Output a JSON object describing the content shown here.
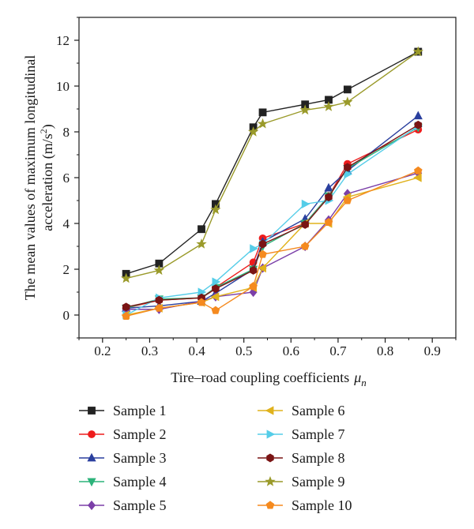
{
  "chart_data": {
    "type": "line",
    "xlabel": "Tire–road coupling coefficients",
    "xlabel_symbol": "μ",
    "xlabel_subscript": "n",
    "ylabel_line1": "The mean values of maximum longitudinal",
    "ylabel_line2": "acceleration (m/s",
    "ylabel_sup": "2",
    "ylabel_end": ")",
    "xlim": [
      0.15,
      0.95
    ],
    "ylim": [
      -1,
      13
    ],
    "xticks": [
      "0.2",
      "0.3",
      "0.4",
      "0.5",
      "0.6",
      "0.7",
      "0.8",
      "0.9"
    ],
    "yticks": [
      "0",
      "2",
      "4",
      "6",
      "8",
      "10",
      "12"
    ],
    "grid": false,
    "legend_position": "bottom",
    "x": [
      0.25,
      0.32,
      0.41,
      0.44,
      0.52,
      0.54,
      0.63,
      0.68,
      0.72,
      0.87
    ],
    "series": [
      {
        "name": "Sample 1",
        "color": "#222222",
        "marker": "square",
        "values": [
          1.8,
          2.25,
          3.75,
          4.85,
          8.2,
          8.85,
          9.2,
          9.4,
          9.85,
          11.5
        ]
      },
      {
        "name": "Sample 2",
        "color": "#ee1c1c",
        "marker": "circle",
        "values": [
          0.3,
          0.65,
          0.75,
          1.2,
          2.3,
          3.35,
          4.0,
          5.2,
          6.6,
          8.1
        ]
      },
      {
        "name": "Sample 3",
        "color": "#2a3f9e",
        "marker": "triangle-up",
        "values": [
          0.3,
          0.4,
          0.6,
          0.95,
          2.0,
          3.2,
          4.2,
          5.55,
          6.3,
          8.7
        ]
      },
      {
        "name": "Sample 4",
        "color": "#2cb37a",
        "marker": "triangle-down",
        "values": [
          0.3,
          0.7,
          0.75,
          1.2,
          2.0,
          3.0,
          4.0,
          5.2,
          6.4,
          8.2
        ]
      },
      {
        "name": "Sample 5",
        "color": "#7b3fa8",
        "marker": "diamond",
        "values": [
          0.25,
          0.25,
          0.6,
          0.8,
          1.0,
          2.05,
          3.0,
          4.15,
          5.3,
          6.2
        ]
      },
      {
        "name": "Sample 6",
        "color": "#e0b21c",
        "marker": "triangle-left",
        "values": [
          0.0,
          0.3,
          0.55,
          0.8,
          1.2,
          2.05,
          4.0,
          4.0,
          5.15,
          6.0
        ]
      },
      {
        "name": "Sample 7",
        "color": "#55cde8",
        "marker": "triangle-right",
        "values": [
          0.0,
          0.75,
          1.0,
          1.45,
          2.9,
          3.1,
          4.85,
          5.0,
          6.15,
          8.25
        ]
      },
      {
        "name": "Sample 8",
        "color": "#7a1414",
        "marker": "hexagon",
        "values": [
          0.35,
          0.65,
          0.75,
          1.15,
          1.95,
          3.1,
          3.95,
          5.15,
          6.45,
          8.3
        ]
      },
      {
        "name": "Sample 9",
        "color": "#9a9a2a",
        "marker": "star",
        "values": [
          1.6,
          1.95,
          3.1,
          4.6,
          8.0,
          8.35,
          8.95,
          9.1,
          9.3,
          11.5
        ]
      },
      {
        "name": "Sample 10",
        "color": "#f58a1f",
        "marker": "pentagon",
        "values": [
          -0.05,
          0.3,
          0.55,
          0.2,
          1.25,
          2.65,
          3.0,
          4.05,
          5.0,
          6.3
        ]
      }
    ]
  }
}
